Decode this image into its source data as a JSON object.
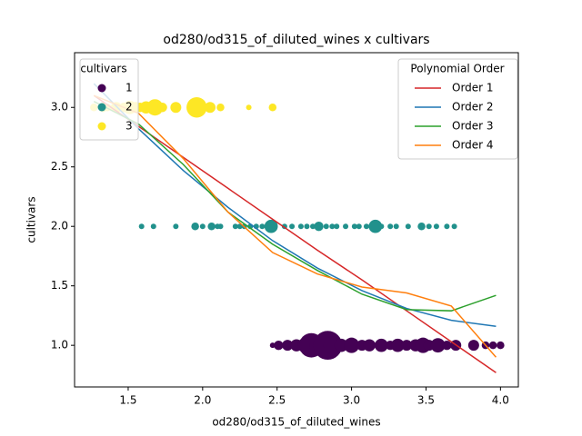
{
  "chart_data": {
    "type": "scatter",
    "title": "od280/od315_of_diluted_wines x cultivars",
    "x_label": "od280/od315_of_diluted_wines",
    "y_label": "cultivars",
    "scatter_legend_title": "cultivars",
    "line_legend_title": "Polynomial Order",
    "xlim": [
      1.14,
      4.12
    ],
    "ylim": [
      0.65,
      3.46
    ],
    "xticks": [
      1.5,
      {
        "value": 2,
        "label": "2.0"
      },
      2.5,
      {
        "value": 3,
        "label": "3.0"
      },
      3.5,
      {
        "value": 4,
        "label": "4.0"
      }
    ],
    "yticks": [
      {
        "value": 1,
        "label": "1.0"
      },
      1.5,
      {
        "value": 2,
        "label": "2.0"
      },
      2.5,
      {
        "value": 3,
        "label": "3.0"
      }
    ],
    "series": [
      {
        "name": "1",
        "type": "scatter",
        "color": "#440154",
        "x": [
          2.47,
          2.51,
          2.57,
          2.63,
          2.69,
          2.73,
          2.78,
          2.84,
          2.87,
          2.93,
          3.0,
          3.07,
          3.12,
          3.2,
          3.26,
          3.31,
          3.37,
          3.43,
          3.48,
          3.52,
          3.58,
          3.64,
          3.7,
          3.82,
          3.9,
          3.95,
          4.0
        ],
        "values": [
          1,
          1,
          1,
          1,
          1,
          1,
          1,
          1,
          1,
          1,
          1,
          1,
          1,
          1,
          1,
          1,
          1,
          1,
          1,
          1,
          1,
          1,
          1,
          1,
          1,
          1,
          1
        ],
        "sizes": [
          1,
          3,
          4,
          5,
          8,
          20,
          12,
          28,
          10,
          6,
          8,
          4,
          5,
          6,
          3,
          6,
          4,
          5,
          8,
          4,
          7,
          3,
          4,
          4,
          2,
          2,
          2
        ]
      },
      {
        "name": "2",
        "type": "scatter",
        "color": "#21918c",
        "x": [
          1.59,
          1.67,
          1.82,
          1.95,
          2.0,
          2.06,
          2.1,
          2.12,
          2.22,
          2.25,
          2.28,
          2.32,
          2.36,
          2.4,
          2.46,
          2.55,
          2.6,
          2.66,
          2.7,
          2.74,
          2.78,
          2.83,
          2.87,
          2.9,
          2.96,
          3.02,
          3.05,
          3.1,
          3.16,
          3.2,
          3.26,
          3.3,
          3.38,
          3.47,
          3.52,
          3.57,
          3.64,
          3.69
        ],
        "values": [
          2,
          2,
          2,
          2,
          2,
          2,
          2,
          2,
          2,
          2,
          2,
          2,
          2,
          2,
          2,
          2,
          2,
          2,
          2,
          2,
          2,
          2,
          2,
          2,
          2,
          2,
          2,
          2,
          2,
          2,
          2,
          2,
          2,
          2,
          2,
          2,
          2,
          2
        ],
        "sizes": [
          1,
          1,
          1,
          2,
          1,
          2,
          1,
          1,
          1,
          1,
          1,
          1,
          1,
          1,
          6,
          1,
          1,
          1,
          1,
          1,
          3,
          1,
          1,
          1,
          1,
          1,
          1,
          1,
          6,
          1,
          1,
          1,
          1,
          2,
          1,
          1,
          1,
          1
        ]
      },
      {
        "name": "3",
        "type": "scatter",
        "color": "#fde725",
        "x": [
          1.27,
          1.33,
          1.36,
          1.42,
          1.47,
          1.51,
          1.55,
          1.58,
          1.62,
          1.68,
          1.73,
          1.82,
          1.96,
          2.05,
          2.12,
          2.31,
          2.47
        ],
        "values": [
          3,
          3,
          3,
          3,
          3,
          3,
          3,
          3,
          3,
          3,
          3,
          3,
          3,
          3,
          3,
          3,
          3
        ],
        "sizes": [
          2,
          3,
          2,
          4,
          3,
          6,
          4,
          3,
          5,
          9,
          3,
          4,
          14,
          4,
          2,
          1,
          2
        ]
      },
      {
        "name": "Order 1",
        "type": "line",
        "color": "#d62728",
        "x": [
          1.27,
          1.57,
          1.87,
          2.17,
          2.47,
          2.77,
          3.07,
          3.37,
          3.67,
          3.97
        ],
        "values": [
          3.1,
          2.84,
          2.58,
          2.32,
          2.06,
          1.8,
          1.55,
          1.29,
          1.03,
          0.77
        ]
      },
      {
        "name": "Order 2",
        "type": "line",
        "color": "#1f77b4",
        "x": [
          1.27,
          1.57,
          1.87,
          2.17,
          2.47,
          2.77,
          3.07,
          3.37,
          3.67,
          3.97
        ],
        "values": [
          3.2,
          2.82,
          2.47,
          2.16,
          1.88,
          1.65,
          1.46,
          1.31,
          1.21,
          1.16
        ]
      },
      {
        "name": "Order 3",
        "type": "line",
        "color": "#2ca02c",
        "x": [
          1.27,
          1.57,
          1.87,
          2.17,
          2.47,
          2.77,
          3.07,
          3.37,
          3.67,
          3.97
        ],
        "values": [
          3.05,
          2.86,
          2.52,
          2.12,
          1.85,
          1.63,
          1.43,
          1.3,
          1.29,
          1.42
        ]
      },
      {
        "name": "Order 4",
        "type": "line",
        "color": "#ff7f0e",
        "x": [
          1.27,
          1.57,
          1.87,
          2.17,
          2.47,
          2.77,
          3.07,
          3.37,
          3.67,
          3.97
        ],
        "values": [
          3.1,
          2.95,
          2.57,
          2.12,
          1.78,
          1.6,
          1.49,
          1.44,
          1.33,
          0.9
        ]
      }
    ]
  }
}
